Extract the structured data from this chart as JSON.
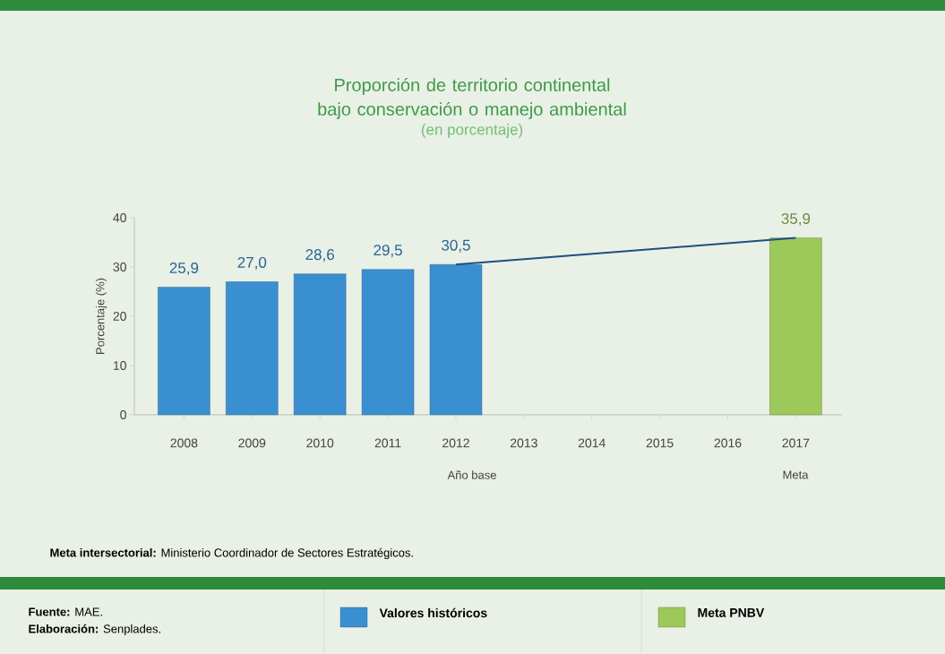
{
  "chart_data": {
    "type": "bar",
    "title": "Proporción de territorio continental bajo conservación o manejo ambiental",
    "subtitle": "(en porcentaje)",
    "ylabel": "Porcentaje (%)",
    "categories": [
      "2008",
      "2009",
      "2010",
      "2011",
      "2012",
      "2013",
      "2014",
      "2015",
      "2016",
      "2017"
    ],
    "series": [
      {
        "name": "Valores históricos",
        "color": "#3a8fd0",
        "values": [
          25.9,
          27.0,
          28.6,
          29.5,
          30.5,
          null,
          null,
          null,
          null,
          null
        ],
        "value_labels": [
          "25,9",
          "27,0",
          "28,6",
          "29,5",
          "30,5",
          null,
          null,
          null,
          null,
          null
        ]
      },
      {
        "name": "Meta PNBV",
        "color": "#9cc95a",
        "values": [
          null,
          null,
          null,
          null,
          null,
          null,
          null,
          null,
          null,
          35.9
        ],
        "value_labels": [
          null,
          null,
          null,
          null,
          null,
          null,
          null,
          null,
          null,
          "35,9"
        ]
      },
      {
        "type": "line",
        "color": "#1d4f80",
        "values": [
          null,
          null,
          null,
          null,
          30.5,
          null,
          null,
          null,
          null,
          35.9
        ]
      }
    ],
    "ylim": [
      0,
      40
    ],
    "yticks": [
      0,
      10,
      20,
      30,
      40
    ],
    "grid": false,
    "legend": "bottom",
    "annotations": [
      "Año base",
      "Meta",
      "**Meta intersectorial:** Ministerio Coordinador de Sectores Estratégicos.",
      "**Fuente:** MAE.",
      "**Elaboración:** Senplades."
    ]
  }
}
